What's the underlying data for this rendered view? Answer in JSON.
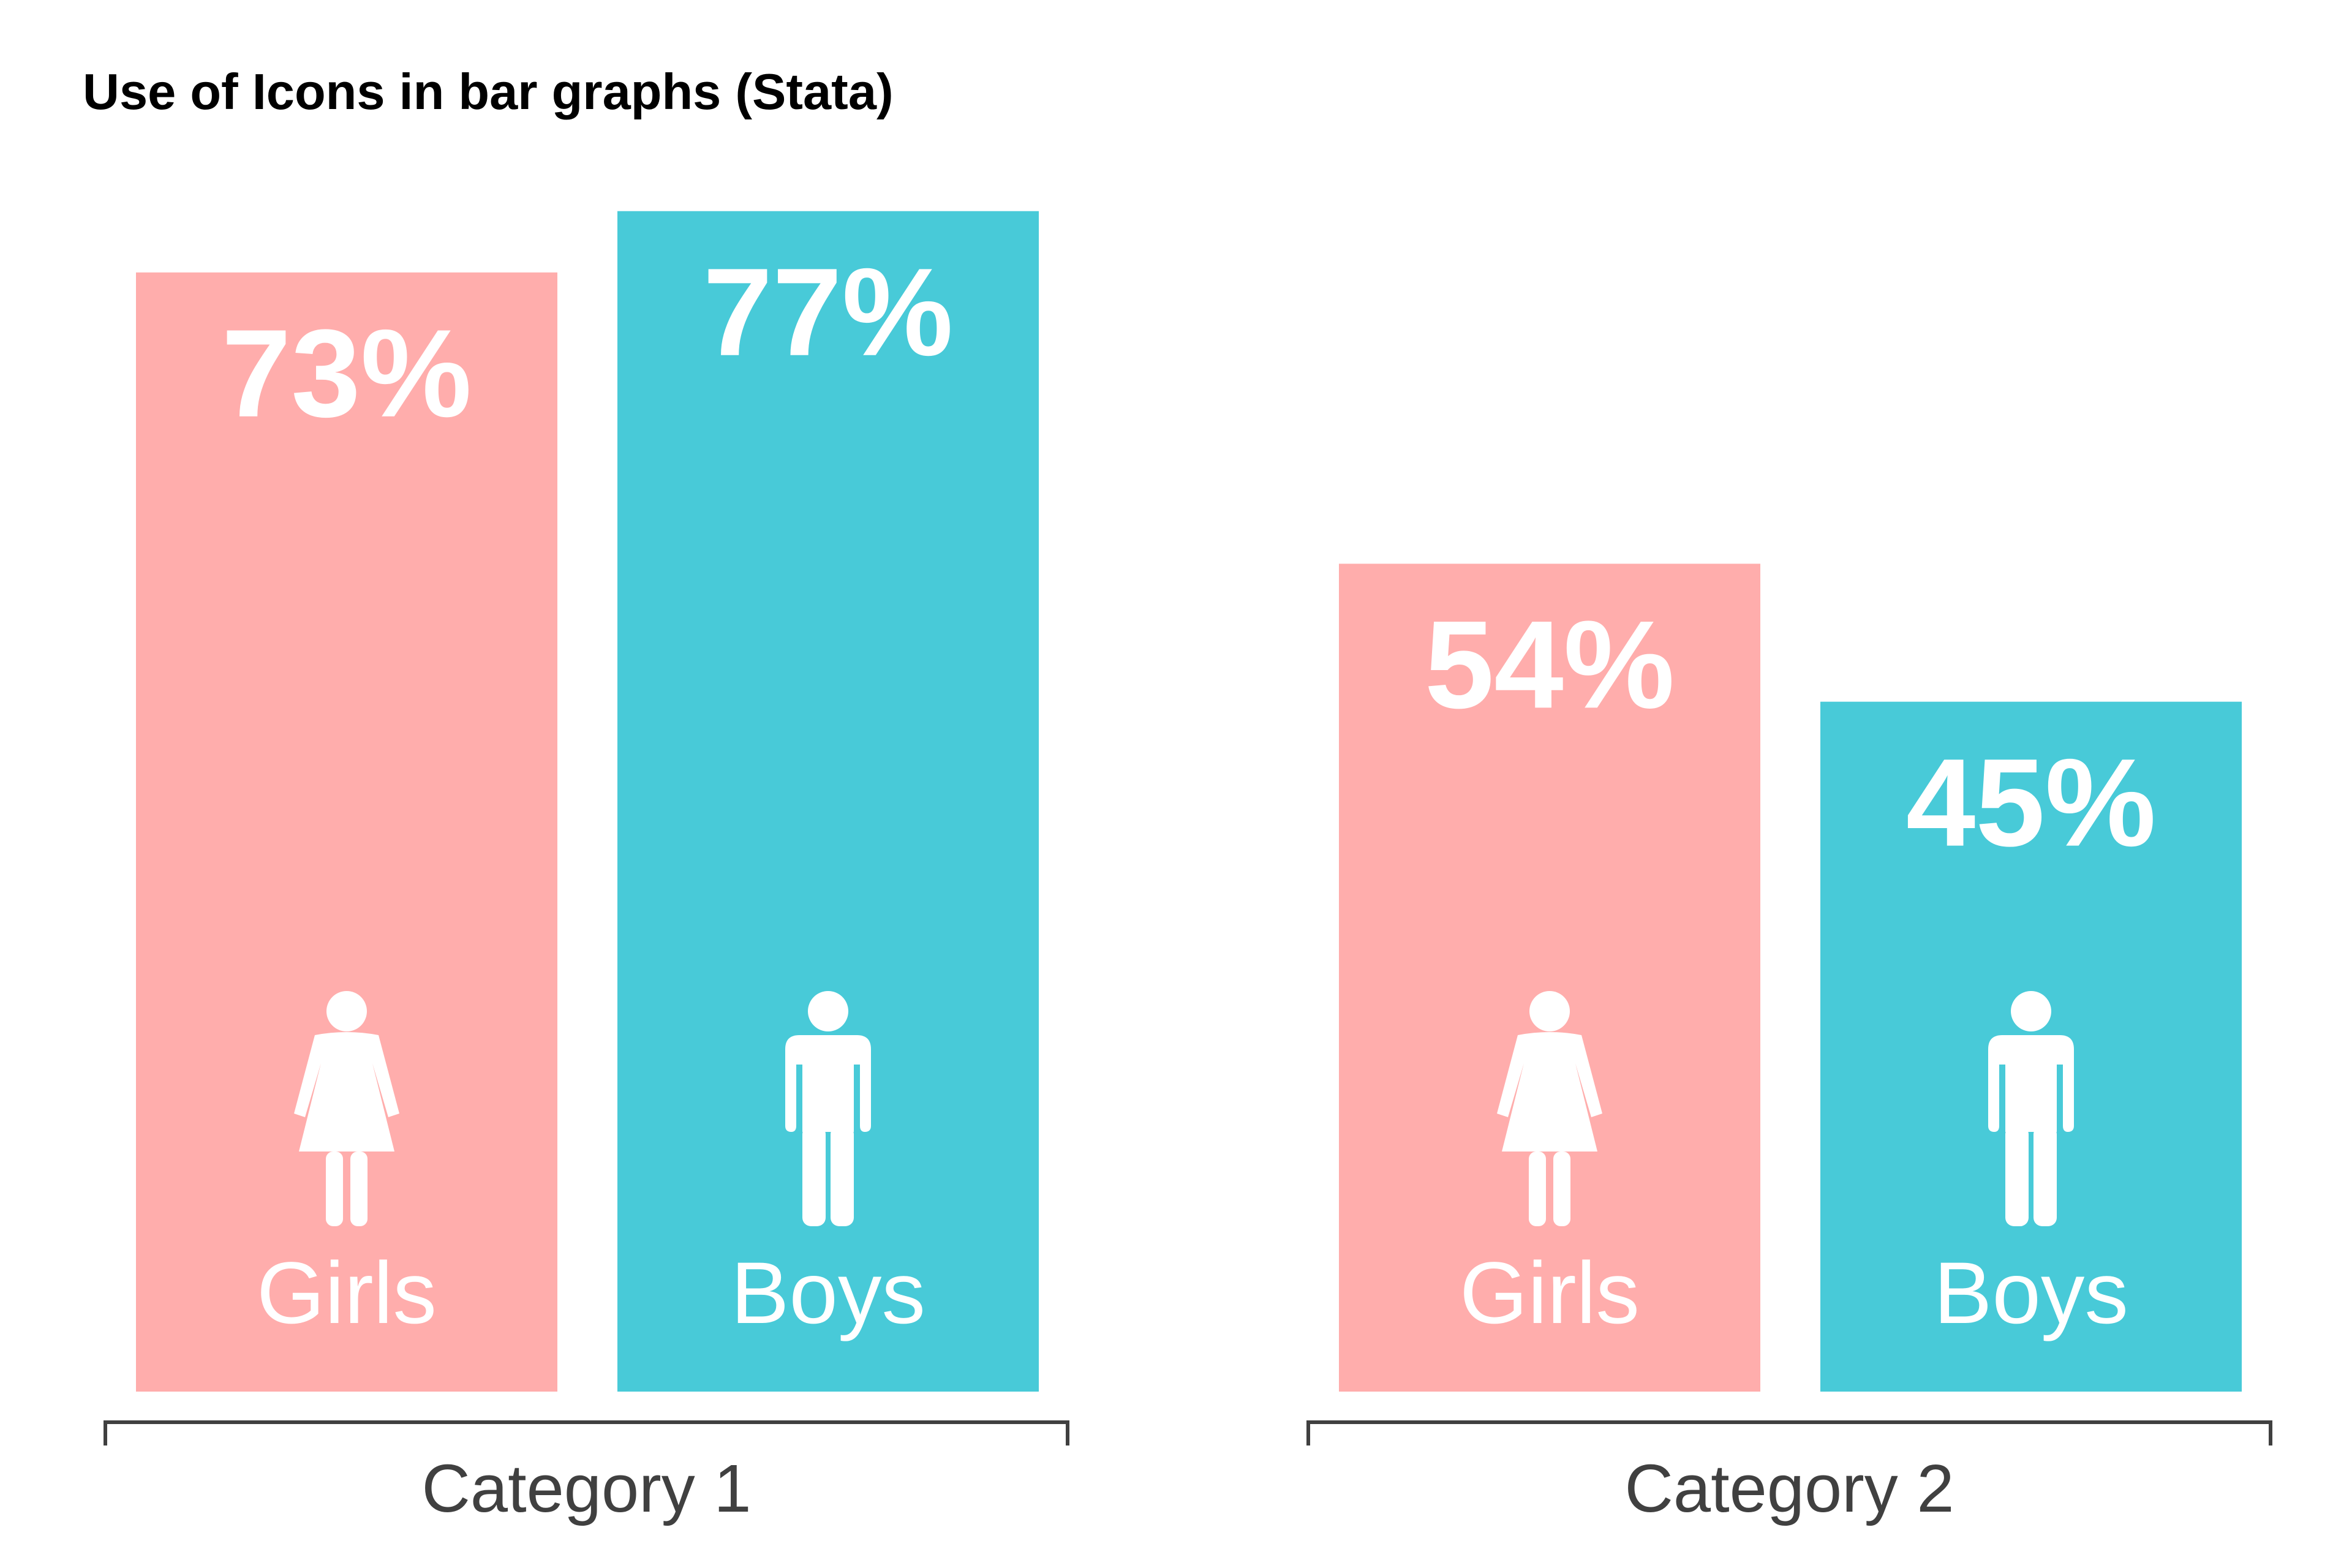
{
  "chart_data": {
    "type": "bar",
    "title": "Use of Icons in bar graphs (Stata)",
    "categories": [
      "Category 1",
      "Category 2"
    ],
    "series": [
      {
        "name": "Girls",
        "icon": "female-figure-icon",
        "color": "#FFADAC",
        "values": [
          73,
          54
        ]
      },
      {
        "name": "Boys",
        "icon": "male-figure-icon",
        "color": "#48CAD8",
        "values": [
          77,
          45
        ]
      }
    ],
    "value_format": "percent",
    "ylim": [
      0,
      100
    ],
    "grid": false,
    "legend": "none"
  },
  "colors": {
    "label_text": "#ffffff",
    "axis": "#404040",
    "title": "#000000"
  }
}
